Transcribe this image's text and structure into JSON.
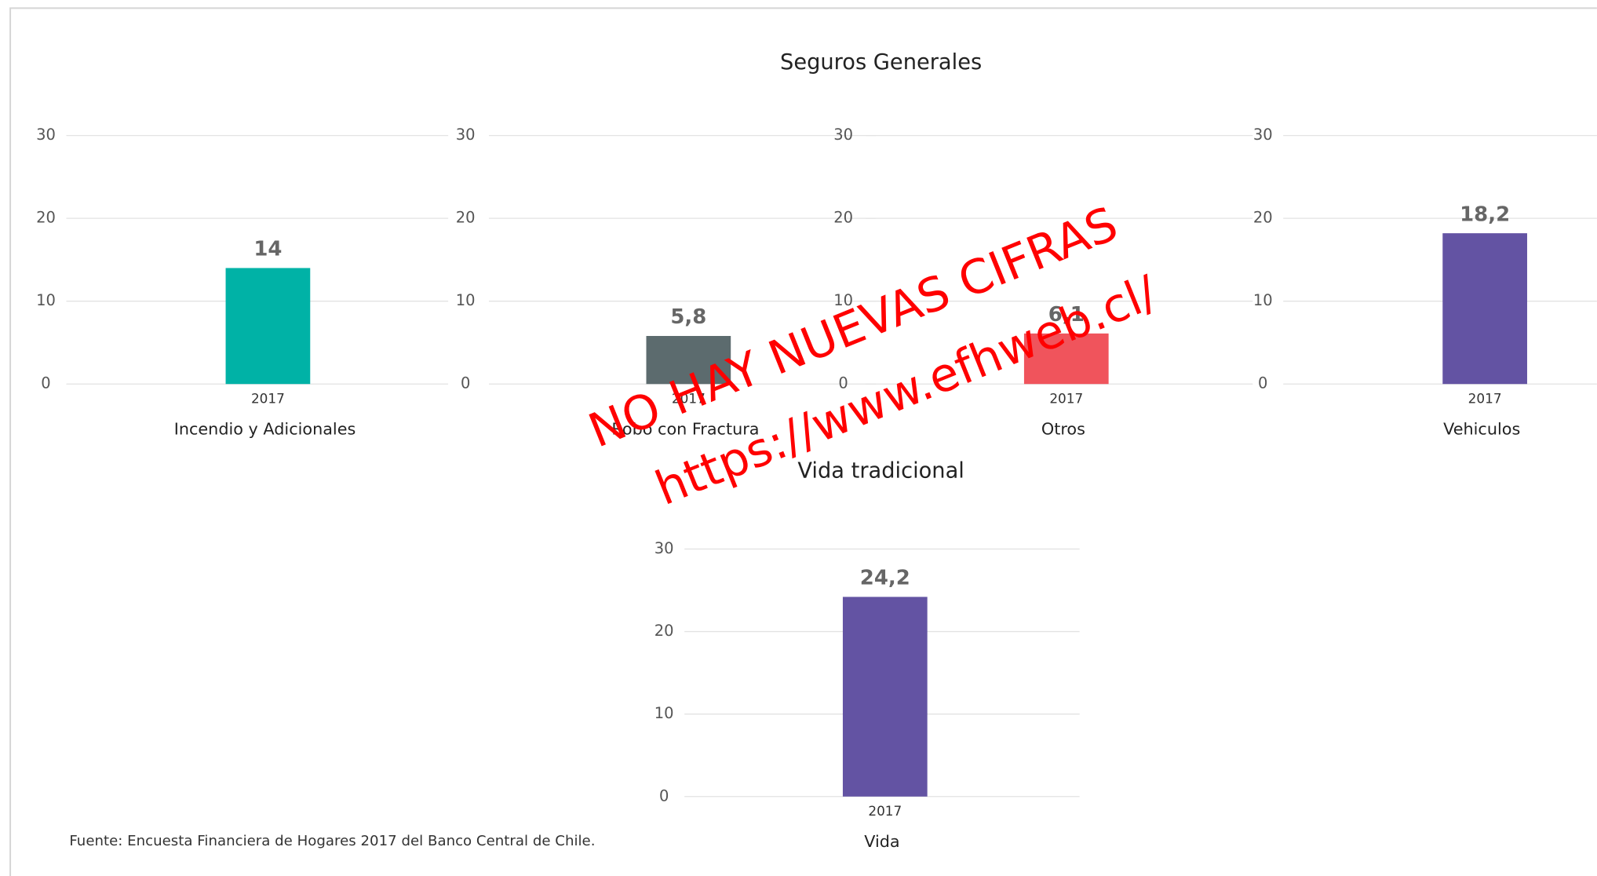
{
  "sections": [
    "Seguros Generales",
    "Vida tradicional"
  ],
  "chart_data": [
    {
      "type": "bar",
      "categories": [
        "2017"
      ],
      "xlabel": "Incendio y Adicionales",
      "values": [
        14
      ],
      "color": "#00b2a6",
      "ylim": [
        0,
        30
      ],
      "yticks": [
        0,
        10,
        20,
        30
      ],
      "grid": true
    },
    {
      "type": "bar",
      "categories": [
        "2017"
      ],
      "xlabel": "Robo con Fractura",
      "values": [
        5.8
      ],
      "value_labels": [
        "5,8"
      ],
      "color": "#5c6b6e",
      "ylim": [
        0,
        30
      ],
      "yticks": [
        0,
        10,
        20,
        30
      ],
      "grid": true
    },
    {
      "type": "bar",
      "categories": [
        "2017"
      ],
      "xlabel": "Otros",
      "values": [
        6.1
      ],
      "value_labels": [
        "6,1"
      ],
      "color": "#f0545c",
      "ylim": [
        0,
        30
      ],
      "yticks": [
        0,
        10,
        20,
        30
      ],
      "grid": true
    },
    {
      "type": "bar",
      "categories": [
        "2017"
      ],
      "xlabel": "Vehiculos",
      "values": [
        18.2
      ],
      "value_labels": [
        "18,2"
      ],
      "color": "#6353a3",
      "ylim": [
        0,
        30
      ],
      "yticks": [
        0,
        10,
        20,
        30
      ],
      "grid": true
    },
    {
      "type": "bar",
      "categories": [
        "2017"
      ],
      "xlabel": "Vida",
      "values": [
        24.2
      ],
      "value_labels": [
        "24,2"
      ],
      "color": "#6353a3",
      "ylim": [
        0,
        30
      ],
      "yticks": [
        0,
        10,
        20,
        30
      ],
      "grid": true
    }
  ],
  "source": "Fuente: Encuesta Financiera de Hogares 2017 del Banco Central de Chile.",
  "watermark": [
    "NO HAY NUEVAS CIFRAS",
    "https://www.efhweb.cl/"
  ]
}
